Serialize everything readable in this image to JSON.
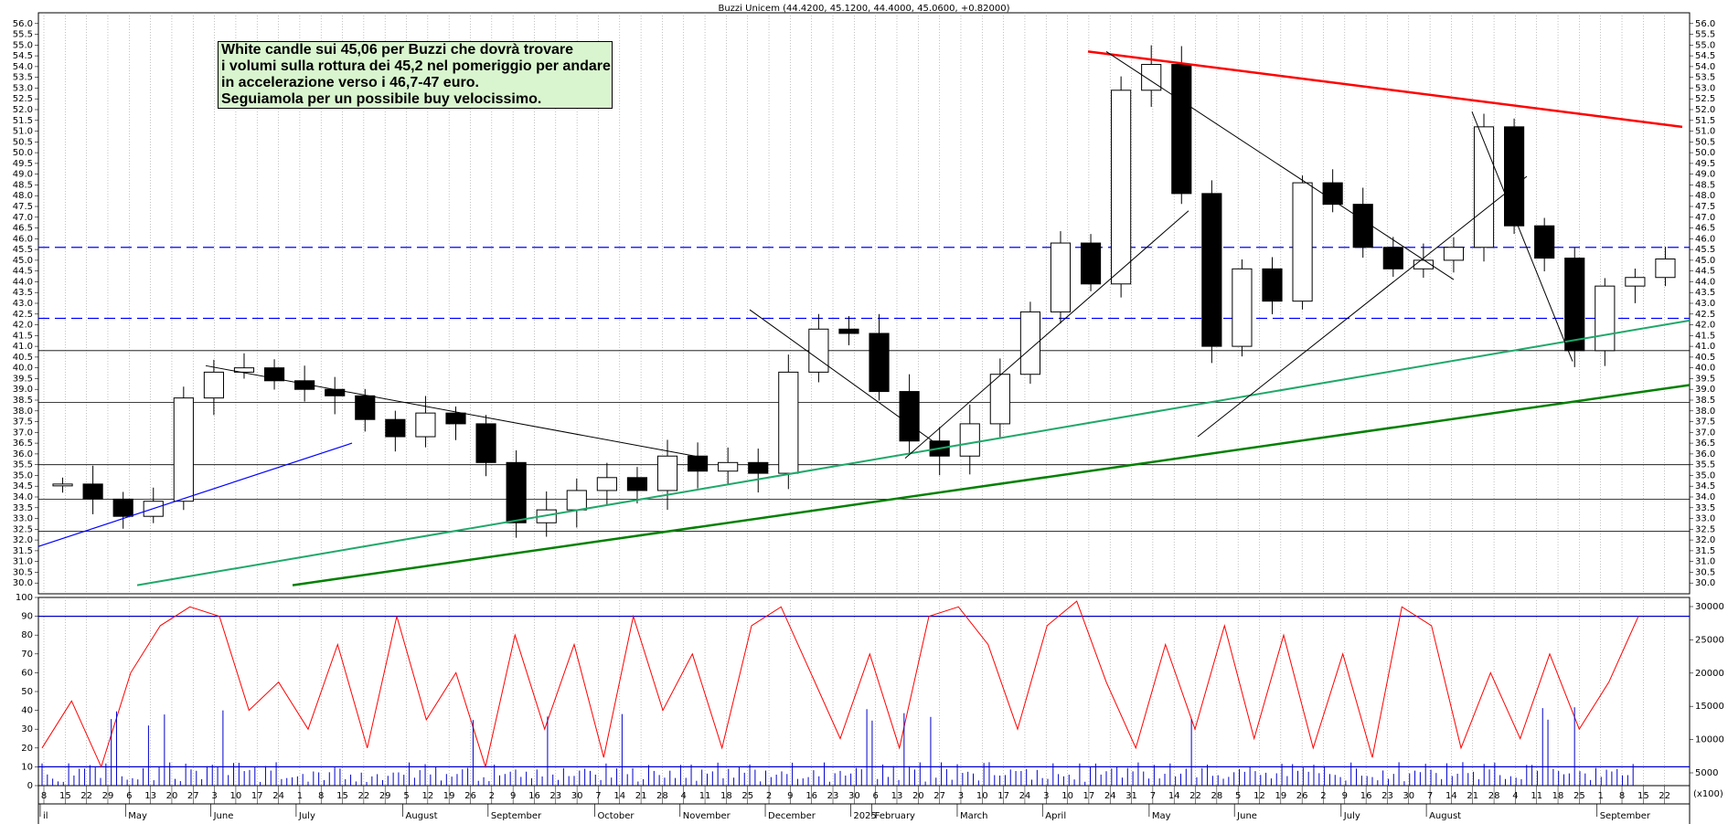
{
  "header": {
    "title": "Buzzi Unicem (44.4200, 45.1200, 44.4000, 45.0600, +0.82000)"
  },
  "annotation": {
    "lines": [
      "White candle sui 45,06 per Buzzi che dovrà trovare",
      "i volumi sulla rottura dei 45,2 nel pomeriggio per andare",
      "in accelerazione verso i 46,7-47 euro.",
      "Seguiamola per un possibile buy velocissimo."
    ]
  },
  "colors": {
    "red_line": "#ff0000",
    "blue_dash": "#0000ff",
    "green_light": "#1fa86a",
    "green_dark": "#008000",
    "oscillator": "#ff0000",
    "volume": "#0000cc",
    "grid": "#999999"
  },
  "chart_data": [
    {
      "type": "candlestick",
      "name": "price",
      "ylim": [
        29.5,
        56.5
      ],
      "y_ticks": [
        "30.0",
        "30.5",
        "31.0",
        "31.5",
        "32.0",
        "32.5",
        "33.0",
        "33.5",
        "34.0",
        "34.5",
        "35.0",
        "35.5",
        "36.0",
        "36.5",
        "37.0",
        "37.5",
        "38.0",
        "38.5",
        "39.0",
        "39.5",
        "40.0",
        "40.5",
        "41.0",
        "41.5",
        "42.0",
        "42.5",
        "43.0",
        "43.5",
        "44.0",
        "44.5",
        "45.0",
        "45.5",
        "46.0",
        "46.5",
        "47.0",
        "47.5",
        "48.0",
        "48.5",
        "49.0",
        "49.5",
        "50.0",
        "50.5",
        "51.0",
        "51.5",
        "52.0",
        "52.5",
        "53.0",
        "53.5",
        "54.0",
        "54.5",
        "55.0",
        "55.5",
        "56.0"
      ],
      "x_day_labels": [
        "8",
        "15",
        "22",
        "29",
        "6",
        "13",
        "20",
        "27",
        "3",
        "10",
        "17",
        "24",
        "1",
        "8",
        "15",
        "22",
        "29",
        "5",
        "12",
        "19",
        "26",
        "2",
        "9",
        "16",
        "23",
        "30",
        "7",
        "14",
        "21",
        "28",
        "4",
        "11",
        "18",
        "25",
        "2",
        "9",
        "16",
        "23",
        "30",
        "6",
        "13",
        "20",
        "27",
        "3",
        "10",
        "17",
        "24",
        "3",
        "10",
        "17",
        "24",
        "31",
        "7",
        "14",
        "22",
        "28",
        "5",
        "12",
        "19",
        "26",
        "2",
        "9",
        "16",
        "23",
        "30",
        "7",
        "14",
        "21",
        "28",
        "4",
        "11",
        "18",
        "25",
        "1",
        "8",
        "15",
        "22"
      ],
      "x_month_labels": [
        "il",
        "May",
        "June",
        "July",
        "August",
        "September",
        "October",
        "November",
        "December",
        "2025",
        "February",
        "March",
        "April",
        "May",
        "June",
        "July",
        "August",
        "September"
      ],
      "close_approx": [
        34.6,
        33.9,
        33.1,
        33.8,
        38.6,
        39.8,
        40.0,
        39.4,
        39.0,
        38.7,
        37.6,
        36.8,
        37.9,
        37.4,
        35.6,
        32.8,
        33.4,
        34.3,
        34.9,
        34.3,
        35.9,
        35.2,
        35.6,
        35.1,
        39.8,
        41.8,
        41.6,
        38.9,
        36.6,
        35.9,
        37.4,
        39.7,
        42.6,
        45.8,
        43.9,
        52.9,
        54.1,
        48.1,
        41.0,
        44.6,
        43.1,
        48.6,
        47.6,
        45.6,
        44.6,
        45.0,
        45.6,
        51.2,
        46.6,
        45.1,
        40.8,
        43.8,
        44.2,
        45.06
      ],
      "levels": {
        "horizontal_dashed": [
          45.6,
          42.3
        ],
        "horizontal_solid": [
          40.8,
          35.5,
          32.4,
          33.9,
          38.4
        ]
      }
    },
    {
      "type": "line",
      "name": "oscillator",
      "ylim": [
        0,
        100
      ],
      "y_ticks": [
        "0",
        "10",
        "20",
        "30",
        "40",
        "50",
        "60",
        "70",
        "80",
        "90",
        "100"
      ],
      "reference_lines": [
        90,
        10
      ],
      "values_approx": [
        20,
        45,
        10,
        60,
        85,
        95,
        90,
        40,
        55,
        30,
        75,
        20,
        90,
        35,
        60,
        10,
        80,
        30,
        75,
        15,
        90,
        40,
        70,
        20,
        85,
        95,
        60,
        25,
        70,
        20,
        90,
        95,
        75,
        30,
        85,
        98,
        55,
        20,
        75,
        30,
        85,
        25,
        80,
        20,
        70,
        15,
        95,
        85,
        20,
        60,
        25,
        70,
        30,
        55,
        90
      ],
      "secondary_axis_ticks": [
        "5000",
        "10000",
        "15000",
        "20000",
        "25000",
        "30000"
      ],
      "secondary_unit_label": "(x100)"
    }
  ]
}
